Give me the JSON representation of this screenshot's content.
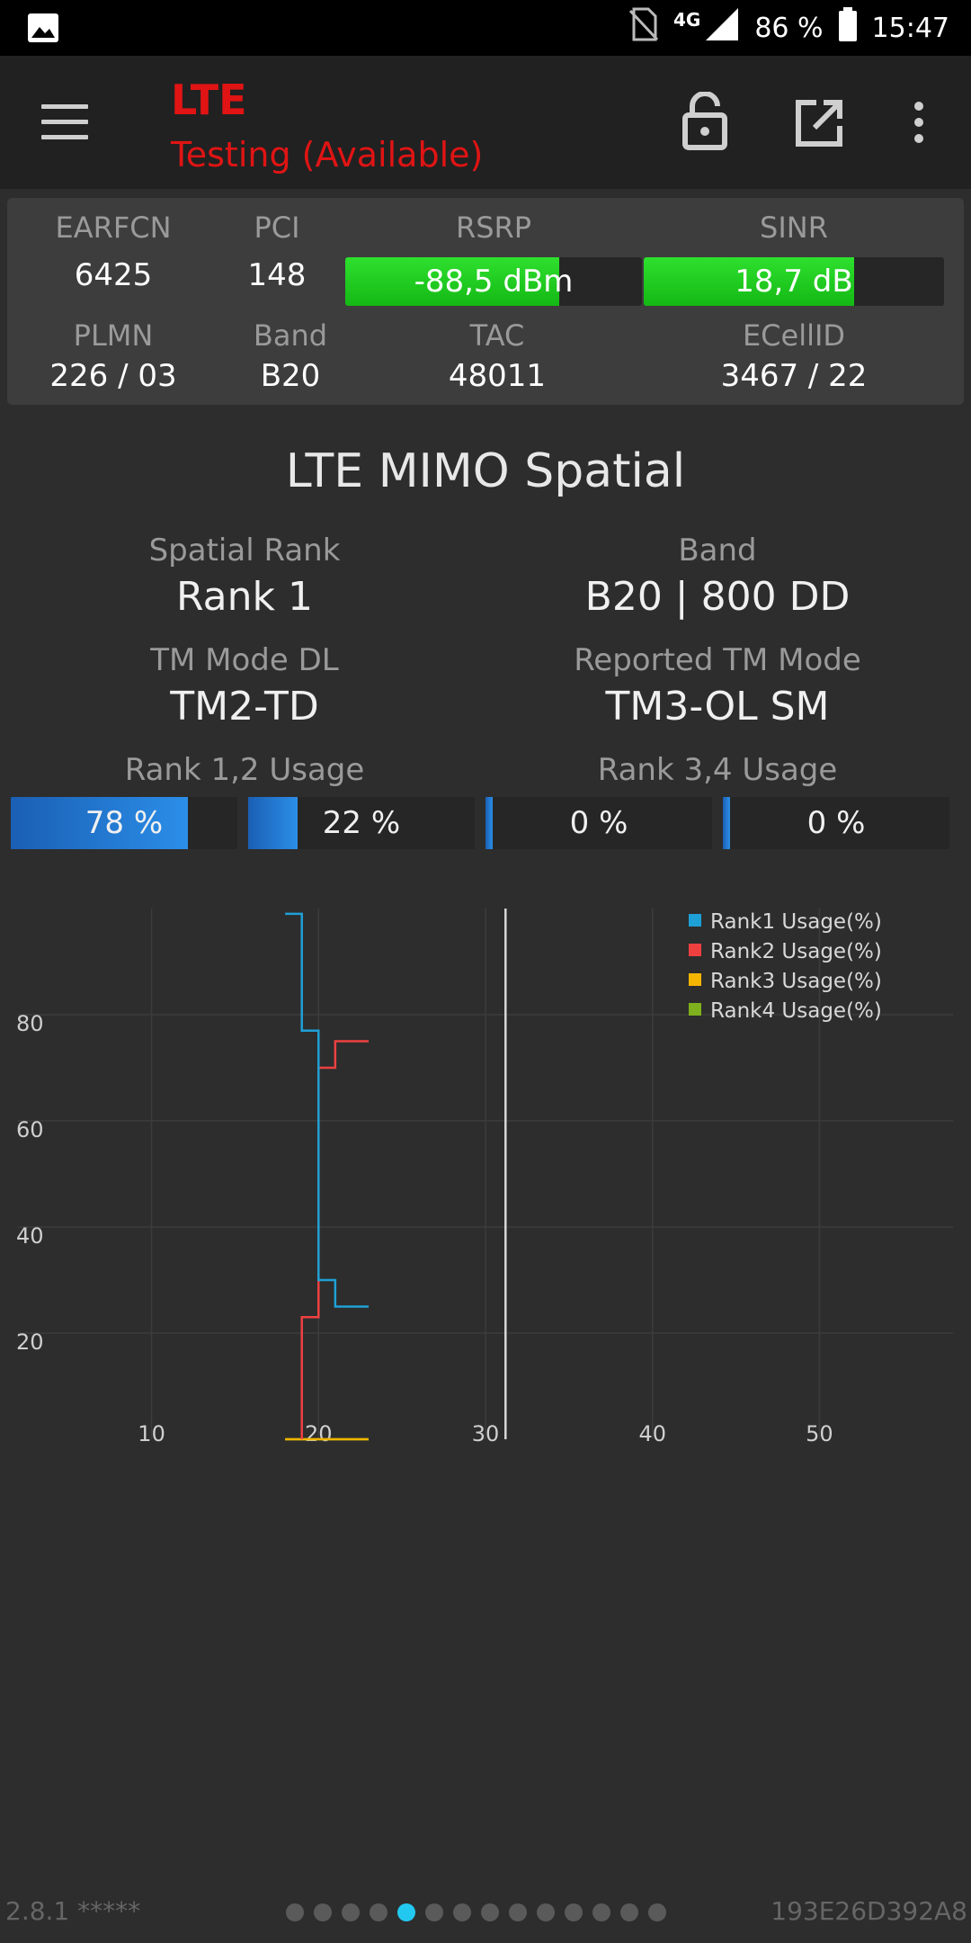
{
  "status_bar": {
    "network": "4G",
    "battery": "86 %",
    "time": "15:47"
  },
  "app_bar": {
    "title": "LTE",
    "subtitle": "Testing (Available)"
  },
  "info": {
    "earfcn": {
      "label": "EARFCN",
      "value": "6425"
    },
    "pci": {
      "label": "PCI",
      "value": "148"
    },
    "rsrp": {
      "label": "RSRP",
      "value": "-88,5 dBm",
      "level": 0.72
    },
    "sinr": {
      "label": "SINR",
      "value": "18,7 dB",
      "level": 0.7
    },
    "plmn": {
      "label": "PLMN",
      "value": "226 / 03"
    },
    "band": {
      "label": "Band",
      "value": "B20"
    },
    "tac": {
      "label": "TAC",
      "value": "48011"
    },
    "ecellid": {
      "label": "ECellID",
      "value": "3467 / 22"
    }
  },
  "mimo": {
    "title": "LTE MIMO Spatial",
    "spatial_rank": {
      "label": "Spatial Rank",
      "value": "Rank 1"
    },
    "band": {
      "label": "Band",
      "value": "B20 | 800 DD"
    },
    "tm_mode_dl": {
      "label": "TM Mode DL",
      "value": "TM2-TD"
    },
    "reported_tm": {
      "label": "Reported TM Mode",
      "value": "TM3-OL SM"
    },
    "rank12_label": "Rank 1,2 Usage",
    "rank34_label": "Rank 3,4 Usage",
    "usage": [
      {
        "text": "78 %",
        "percent": 78
      },
      {
        "text": "22 %",
        "percent": 22
      },
      {
        "text": "0 %",
        "percent": 0
      },
      {
        "text": "0 %",
        "percent": 0
      }
    ]
  },
  "chart_data": {
    "type": "line",
    "x_ticks": [
      "10",
      "20",
      "30",
      "40",
      "50"
    ],
    "y_ticks": [
      "20",
      "40",
      "60",
      "80"
    ],
    "xlim": [
      2,
      58
    ],
    "ylim": [
      0,
      100
    ],
    "grid": true,
    "legend_position": "top-right",
    "marker_x": 31.2,
    "series": [
      {
        "name": "Rank1 Usage(%)",
        "color": "#1ea0d6",
        "points": [
          [
            18,
            99
          ],
          [
            19,
            99
          ],
          [
            19,
            77
          ],
          [
            20,
            77
          ],
          [
            20,
            71
          ],
          [
            20,
            71
          ],
          [
            20,
            30
          ],
          [
            21,
            30
          ],
          [
            21,
            25
          ],
          [
            23,
            25
          ]
        ]
      },
      {
        "name": "Rank2 Usage(%)",
        "color": "#ef4040",
        "points": [
          [
            19,
            0
          ],
          [
            19,
            23
          ],
          [
            20,
            23
          ],
          [
            20,
            70
          ],
          [
            21,
            70
          ],
          [
            21,
            75
          ],
          [
            23,
            75
          ]
        ]
      },
      {
        "name": "Rank3 Usage(%)",
        "color": "#f5b400",
        "points": [
          [
            18,
            0
          ],
          [
            23,
            0
          ]
        ]
      },
      {
        "name": "Rank4 Usage(%)",
        "color": "#7fb01e",
        "points": [
          [
            18,
            0
          ],
          [
            23,
            0
          ]
        ]
      }
    ]
  },
  "footer": {
    "version": "2.8.1 *****",
    "device_id": "193E26D392A8",
    "page_count": 14,
    "active_page": 4
  }
}
